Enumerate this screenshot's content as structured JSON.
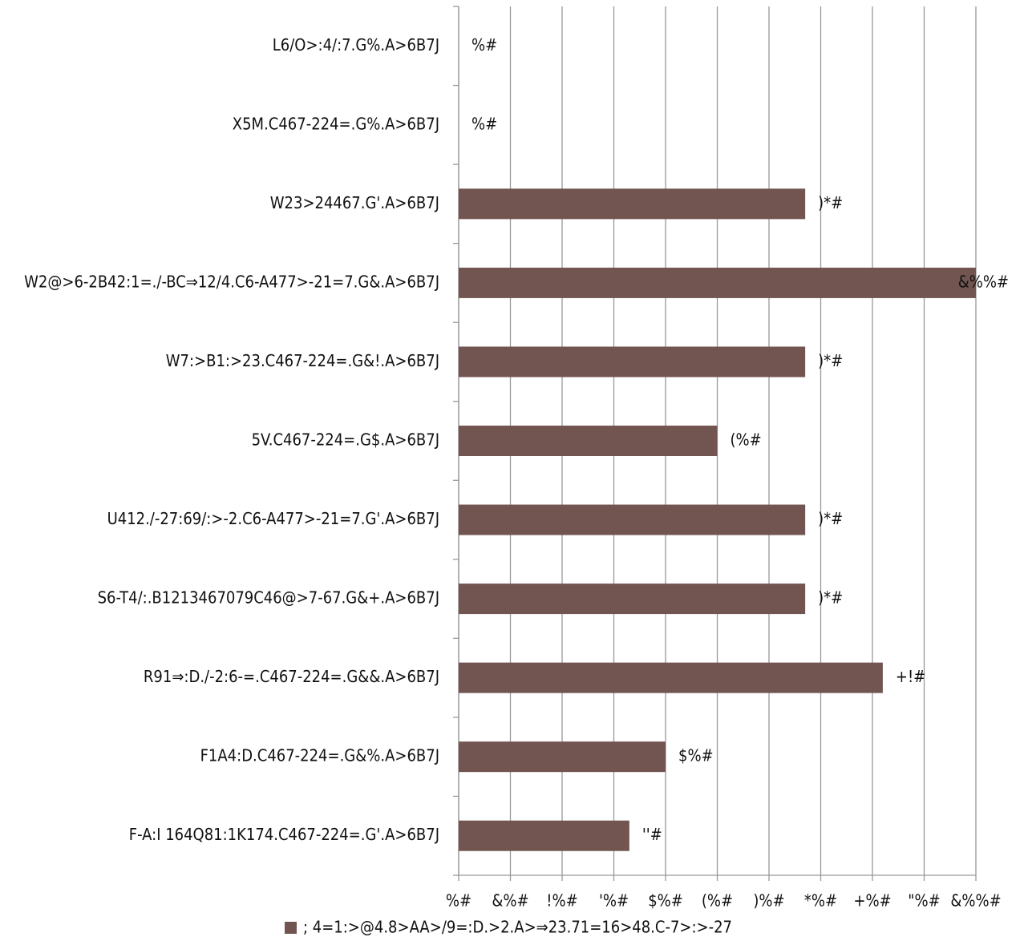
{
  "chart_data": {
    "type": "barh",
    "categories": [
      "L6/O>:4/:7.G%.A>6B7J",
      "X5M.C467-224=.G%.A>6B7J",
      "W23>24467.G'.A>6B7J",
      "W2@>6-2B42:1=./-BC⇒12/4.C6-A477>-21=7.G&.A>6B7J",
      "W7:>B1:>23.C467-224=.G&!.A>6B7J",
      "5V.C467-224=.G$.A>6B7J",
      "U412./-27:69/:>-2.C6-A477>-21=7.G'.A>6B7J",
      "S6-T4/:.B1213467079C46@>7-67.G&+.A>6B7J",
      "R91⇒:D./-2:6-=.C467-224=.G&&.A>6B7J",
      "F1A4:D.C467-224=.G&%.A>6B7J",
      "F-A:I 164Q81:1K174.C467-224=.G'.A>6B7J"
    ],
    "series": [
      {
        "name": "; 4=1:>@4.8>AA>/9=:D.>2.A>⇒23.71=16>48.C-7>:>-27",
        "color": "#725550",
        "values": [
          0,
          0,
          67,
          100,
          67,
          50,
          67,
          67,
          82,
          40,
          33
        ],
        "value_labels": [
          "%#",
          "%#",
          ")*#",
          "&%%#",
          ")*#",
          "(%#",
          ")*#",
          ")*#",
          "+!#",
          "$%#",
          "''#"
        ]
      }
    ],
    "xlim": [
      0,
      100
    ],
    "xticks": [
      {
        "value": 0,
        "label": "%#"
      },
      {
        "value": 10,
        "label": "&%#"
      },
      {
        "value": 20,
        "label": "!%#"
      },
      {
        "value": 30,
        "label": "'%#"
      },
      {
        "value": 40,
        "label": "$%#"
      },
      {
        "value": 50,
        "label": "(%#"
      },
      {
        "value": 60,
        "label": ")%#"
      },
      {
        "value": 70,
        "label": "*%#"
      },
      {
        "value": 80,
        "label": "+%#"
      },
      {
        "value": 90,
        "label": "\"%#"
      },
      {
        "value": 100,
        "label": "&%%#"
      }
    ],
    "grid": true,
    "legend": "bottom"
  }
}
